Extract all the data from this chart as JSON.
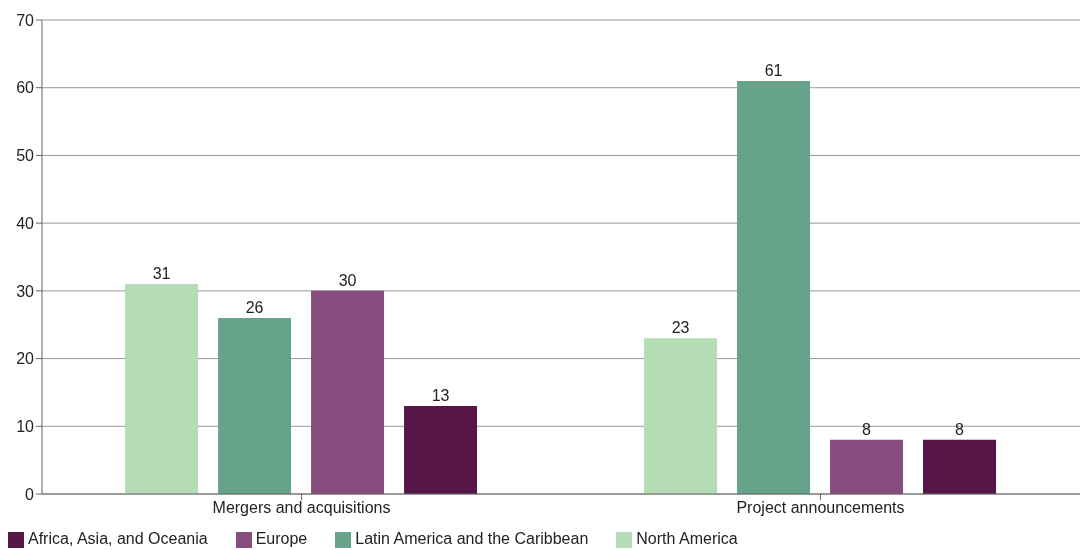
{
  "chart_data": {
    "type": "bar",
    "categories": [
      "Mergers and acquisitions",
      "Project announcements"
    ],
    "series": [
      {
        "name": "North America",
        "color": "#b5ddb5",
        "values": [
          31,
          23
        ]
      },
      {
        "name": "Latin America and the Caribbean",
        "color": "#66a38a",
        "values": [
          26,
          61
        ]
      },
      {
        "name": "Europe",
        "color": "#874c7e",
        "values": [
          30,
          8
        ]
      },
      {
        "name": "Africa, Asia, and Oceania",
        "color": "#561748",
        "values": [
          13,
          8
        ]
      }
    ],
    "ylim": [
      0,
      70
    ],
    "yticks": [
      0,
      10,
      20,
      30,
      40,
      50,
      60,
      70
    ],
    "grid": "y",
    "legend": "bottom",
    "data_labels": true
  }
}
